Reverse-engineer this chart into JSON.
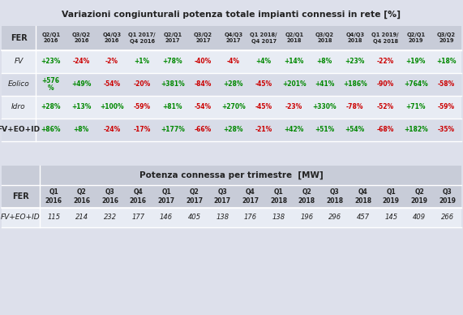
{
  "title1": "Variazioni congiunturali potenza totale impianti connessi in rete [%]",
  "title2": "Potenza connessa per trimestre  [MW]",
  "bg_color": "#dde0eb",
  "table_bg": "#e8ecf4",
  "header_bg": "#c8ccd8",
  "row_alt": "#d8dce8",
  "table1_col_headers": [
    "Q2/Q1\n2016",
    "Q3/Q2\n2016",
    "Q4/Q3\n2016",
    "Q1 2017/\nQ4 2016",
    "Q2/Q1\n2017",
    "Q3/Q2\n2017",
    "Q4/Q3\n2017",
    "Q1 2018/\nQ4 2017",
    "Q2/Q1\n2018",
    "Q3/Q2\n2018",
    "Q4/Q3\n2018",
    "Q1 2019/\nQ4 2018",
    "Q2/Q1\n2019",
    "Q3/Q2\n2019"
  ],
  "table1_rows": [
    {
      "label": "FV",
      "italic": true,
      "values": [
        "+23%",
        "-24%",
        "-2%",
        "+1%",
        "+78%",
        "-40%",
        "-4%",
        "+4%",
        "+14%",
        "+8%",
        "+23%",
        "-22%",
        "+19%",
        "+18%"
      ]
    },
    {
      "label": "Eolico",
      "italic": true,
      "values": [
        "+576\n%",
        "+49%",
        "-54%",
        "-20%",
        "+381%",
        "-84%",
        "+28%",
        "-45%",
        "+201%",
        "+41%",
        "+186%",
        "-90%",
        "+764%",
        "-58%"
      ]
    },
    {
      "label": "Idro",
      "italic": true,
      "values": [
        "+28%",
        "+13%",
        "+100%",
        "-59%",
        "+81%",
        "-54%",
        "+270%",
        "-45%",
        "-23%",
        "+330%",
        "-78%",
        "-52%",
        "+71%",
        "-59%"
      ]
    },
    {
      "label": "FV+EO+ID",
      "italic": false,
      "values": [
        "+86%",
        "+8%",
        "-24%",
        "-17%",
        "+177%",
        "-66%",
        "+28%",
        "-21%",
        "+42%",
        "+51%",
        "+54%",
        "-68%",
        "+182%",
        "-35%"
      ]
    }
  ],
  "table2_col_headers": [
    "Q1\n2016",
    "Q2\n2016",
    "Q3\n2016",
    "Q4\n2016",
    "Q1\n2017",
    "Q2\n2017",
    "Q3\n2017",
    "Q4\n2017",
    "Q1\n2018",
    "Q2\n2018",
    "Q3\n2018",
    "Q4\n2018",
    "Q1\n2019",
    "Q2\n2019",
    "Q3\n2019"
  ],
  "table2_rows": [
    {
      "label": "FV+EO+ID",
      "values": [
        "115",
        "214",
        "232",
        "177",
        "146",
        "405",
        "138",
        "176",
        "138",
        "196",
        "296",
        "457",
        "145",
        "409",
        "266"
      ]
    }
  ],
  "green": "#008800",
  "red": "#cc0000",
  "black": "#222222"
}
